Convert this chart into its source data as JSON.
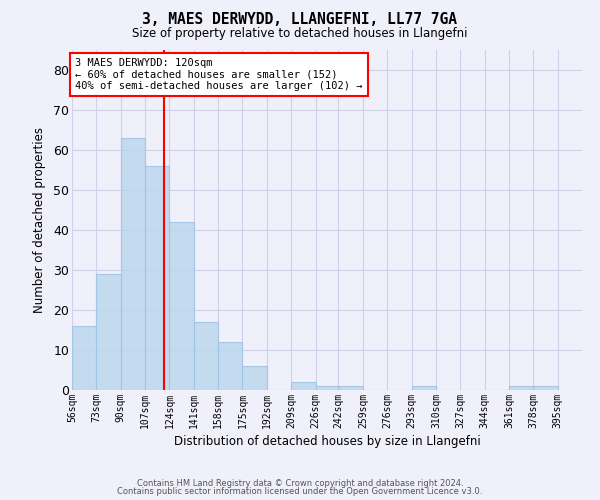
{
  "title": "3, MAES DERWYDD, LLANGEFNI, LL77 7GA",
  "subtitle": "Size of property relative to detached houses in Llangefni",
  "xlabel": "Distribution of detached houses by size in Llangefni",
  "ylabel": "Number of detached properties",
  "bar_values": [
    16,
    29,
    63,
    56,
    42,
    17,
    12,
    6,
    0,
    2,
    1,
    1,
    0,
    0,
    1,
    0,
    0,
    0,
    1,
    1
  ],
  "bin_labels": [
    "56sqm",
    "73sqm",
    "90sqm",
    "107sqm",
    "124sqm",
    "141sqm",
    "158sqm",
    "175sqm",
    "192sqm",
    "209sqm",
    "226sqm",
    "242sqm",
    "259sqm",
    "276sqm",
    "293sqm",
    "310sqm",
    "327sqm",
    "344sqm",
    "361sqm",
    "378sqm",
    "395sqm"
  ],
  "bar_color": "#BDD7EE",
  "bar_edge_color": "#9DC3E6",
  "vline_x": 120,
  "vline_color": "red",
  "ylim": [
    0,
    85
  ],
  "yticks": [
    0,
    10,
    20,
    30,
    40,
    50,
    60,
    70,
    80
  ],
  "annotation_title": "3 MAES DERWYDD: 120sqm",
  "annotation_line1": "← 60% of detached houses are smaller (152)",
  "annotation_line2": "40% of semi-detached houses are larger (102) →",
  "bg_color": "#F0F0FA",
  "grid_color": "#D0D0E8",
  "footer1": "Contains HM Land Registry data © Crown copyright and database right 2024.",
  "footer2": "Contains public sector information licensed under the Open Government Licence v3.0.",
  "bin_width": 17
}
